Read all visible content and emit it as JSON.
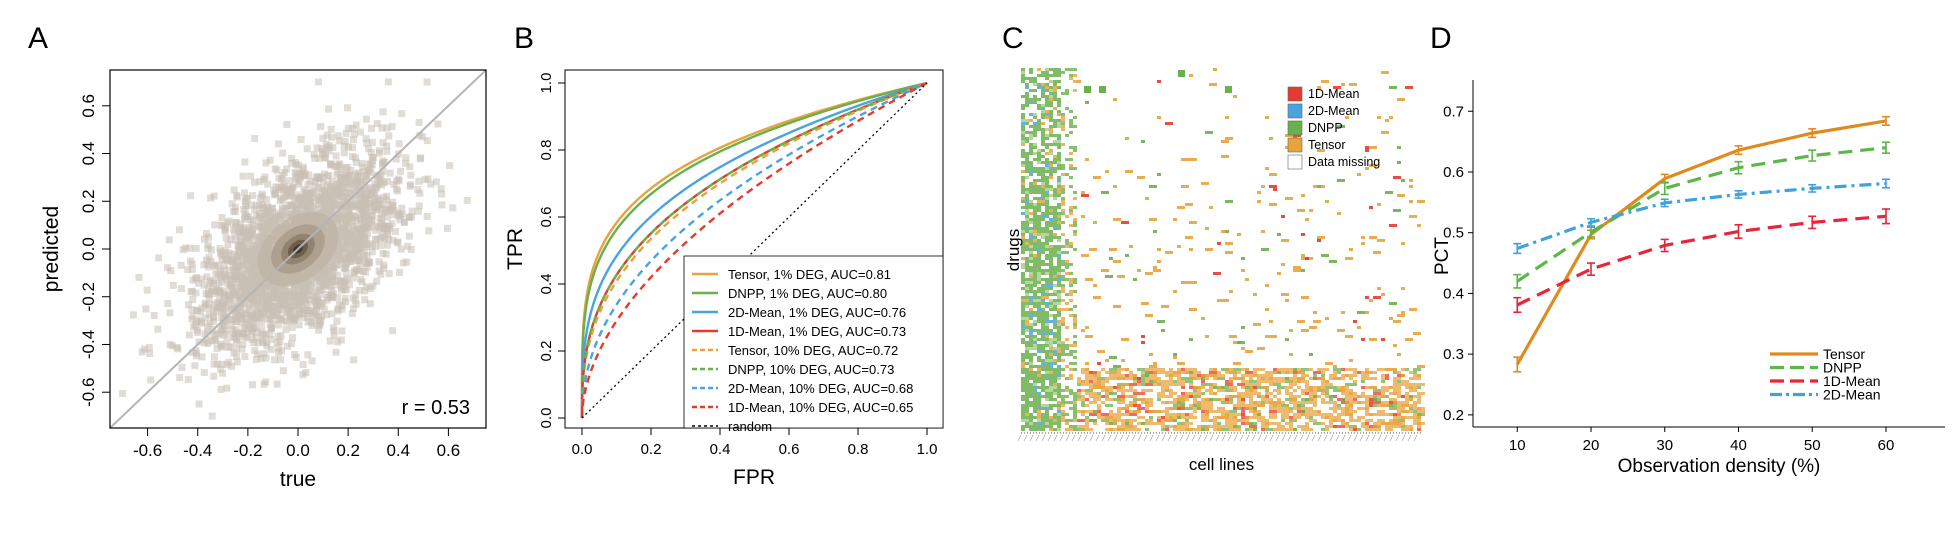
{
  "panels": [
    {
      "letter": "A"
    },
    {
      "letter": "B"
    },
    {
      "letter": "C"
    },
    {
      "letter": "D"
    }
  ],
  "chart_data": [
    {
      "panel": "A",
      "type": "scatter",
      "xlabel": "true",
      "ylabel": "predicted",
      "xlim": [
        -0.75,
        0.75
      ],
      "ylim": [
        -0.75,
        0.75
      ],
      "xticks": [
        "-0.6",
        "-0.4",
        "-0.2",
        "0.0",
        "0.2",
        "0.4",
        "0.6"
      ],
      "yticks": [
        "-0.6",
        "-0.4",
        "-0.2",
        "0.0",
        "0.2",
        "0.4",
        "0.6"
      ],
      "annotation": "r = 0.53",
      "correlation": 0.53,
      "reference_line": "y = x",
      "point_color": "#c9c0b4",
      "density_peak_color": "#3a3226",
      "grid": false
    },
    {
      "panel": "B",
      "type": "line",
      "xlabel": "FPR",
      "ylabel": "TPR",
      "xlim": [
        0,
        1
      ],
      "ylim": [
        0,
        1
      ],
      "xticks": [
        "0.0",
        "0.2",
        "0.4",
        "0.6",
        "0.8",
        "1.0"
      ],
      "yticks": [
        "0.0",
        "0.2",
        "0.4",
        "0.6",
        "0.8",
        "1.0"
      ],
      "legend_position": "bottom-right",
      "grid": false,
      "series": [
        {
          "name": "Tensor, 1% DEG, AUC=0.81",
          "auc": 0.81,
          "color": "#e8a33d",
          "dash": "solid"
        },
        {
          "name": "DNPP, 1% DEG, AUC=0.80",
          "auc": 0.8,
          "color": "#6ab04c",
          "dash": "solid"
        },
        {
          "name": "2D-Mean, 1% DEG, AUC=0.76",
          "auc": 0.76,
          "color": "#4aa3df",
          "dash": "solid"
        },
        {
          "name": "1D-Mean, 1% DEG, AUC=0.73",
          "auc": 0.73,
          "color": "#e53a2f",
          "dash": "solid"
        },
        {
          "name": "Tensor, 10% DEG, AUC=0.72",
          "auc": 0.72,
          "color": "#e8a33d",
          "dash": "dashed"
        },
        {
          "name": "DNPP, 10% DEG, AUC=0.73",
          "auc": 0.73,
          "color": "#6ab04c",
          "dash": "dashed"
        },
        {
          "name": "2D-Mean, 10% DEG, AUC=0.68",
          "auc": 0.68,
          "color": "#4aa3df",
          "dash": "dashed"
        },
        {
          "name": "1D-Mean, 10% DEG, AUC=0.65",
          "auc": 0.65,
          "color": "#e53a2f",
          "dash": "dashed"
        },
        {
          "name": "random",
          "auc": 0.5,
          "color": "#000000",
          "dash": "dotted"
        }
      ]
    },
    {
      "panel": "C",
      "type": "heatmap",
      "xlabel": "cell lines",
      "ylabel": "drugs",
      "legend_position": "top-right",
      "legend": [
        {
          "label": "1D-Mean",
          "color": "#e53a2f"
        },
        {
          "label": "2D-Mean",
          "color": "#4aa3df"
        },
        {
          "label": "DNPP",
          "color": "#6ab04c"
        },
        {
          "label": "Tensor",
          "color": "#e8a33d"
        },
        {
          "label": "Data missing",
          "color": "#ffffff"
        }
      ]
    },
    {
      "panel": "D",
      "type": "line",
      "xlabel": "Observation density (%)",
      "ylabel": "PCT",
      "x": [
        10,
        20,
        30,
        40,
        50,
        60
      ],
      "xticks": [
        "10",
        "20",
        "30",
        "40",
        "50",
        "60"
      ],
      "yticks": [
        "0.2",
        "0.3",
        "0.4",
        "0.5",
        "0.6",
        "0.7"
      ],
      "xlim": [
        4,
        68
      ],
      "ylim": [
        0.18,
        0.735
      ],
      "legend_position": "bottom-right",
      "grid": false,
      "series": [
        {
          "name": "Tensor",
          "values": [
            0.283,
            0.497,
            0.589,
            0.636,
            0.664,
            0.684
          ],
          "errors": [
            0.012,
            0.007,
            0.007,
            0.007,
            0.007,
            0.007
          ],
          "color": "#e08a1e",
          "dash": "solid"
        },
        {
          "name": "DNPP",
          "values": [
            0.42,
            0.501,
            0.573,
            0.607,
            0.627,
            0.64
          ],
          "errors": [
            0.011,
            0.008,
            0.01,
            0.01,
            0.009,
            0.009
          ],
          "color": "#5cb648",
          "dash": "dashed"
        },
        {
          "name": "1D-Mean",
          "values": [
            0.381,
            0.44,
            0.479,
            0.502,
            0.517,
            0.527
          ],
          "errors": [
            0.012,
            0.01,
            0.01,
            0.011,
            0.01,
            0.012
          ],
          "color": "#e8253a",
          "dash": "dashed"
        },
        {
          "name": "2D-Mean",
          "values": [
            0.474,
            0.517,
            0.549,
            0.563,
            0.573,
            0.581
          ],
          "errors": [
            0.008,
            0.006,
            0.006,
            0.006,
            0.006,
            0.007
          ],
          "color": "#3fa2dc",
          "dash": "dashdot"
        }
      ]
    }
  ]
}
